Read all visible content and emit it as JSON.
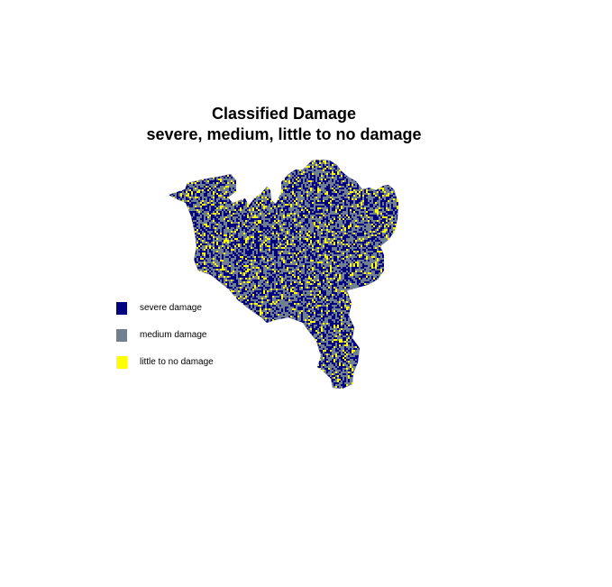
{
  "title": {
    "line1": "Classified Damage",
    "line2": "severe, medium, little to no damage"
  },
  "legend": [
    {
      "label": "severe damage",
      "color": "#000080"
    },
    {
      "label": "medium damage",
      "color": "#708090"
    },
    {
      "label": "little to no damage",
      "color": "#ffff00"
    }
  ],
  "colors": {
    "background": "#ffffff",
    "severe": "#000080",
    "medium": "#708090",
    "little": "#ffff00"
  }
}
